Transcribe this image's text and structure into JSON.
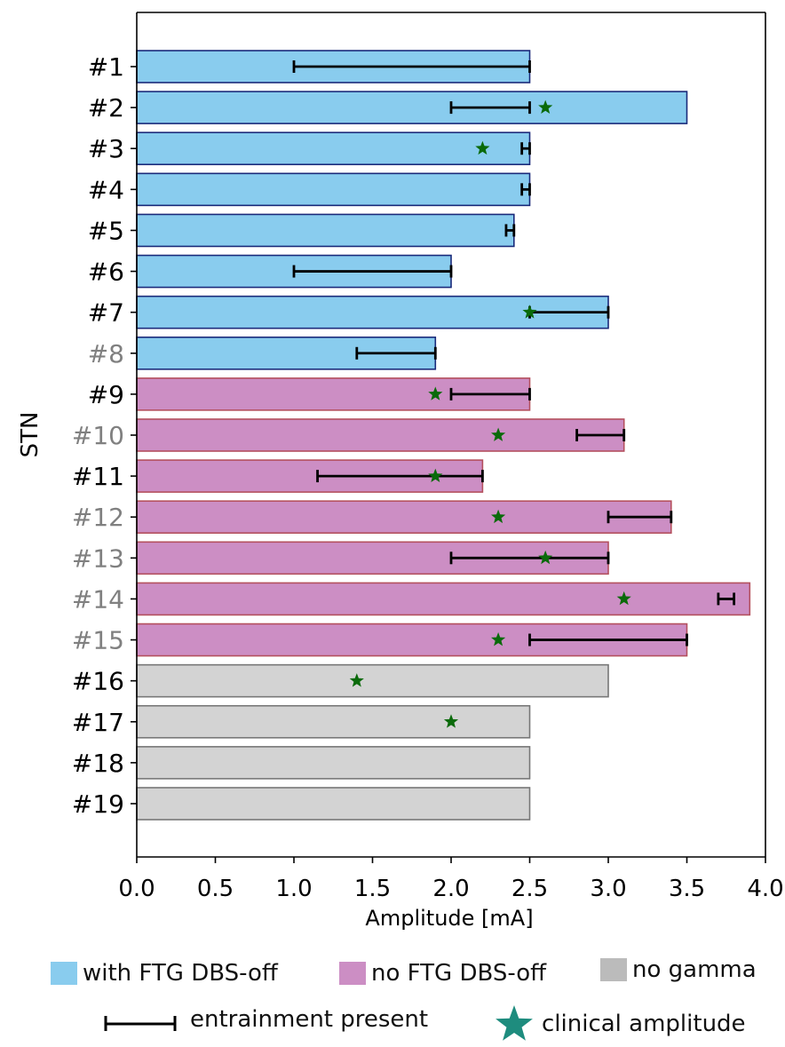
{
  "chart_data": {
    "type": "bar",
    "orientation": "horizontal",
    "ylabel": "STN",
    "xlabel": "Amplitude [mA]",
    "xlim": [
      0.0,
      4.0
    ],
    "xticks": [
      "0.0",
      "0.5",
      "1.0",
      "1.5",
      "2.0",
      "2.5",
      "3.0",
      "3.5",
      "4.0"
    ],
    "grid": false,
    "categories": [
      "#1",
      "#2",
      "#3",
      "#4",
      "#5",
      "#6",
      "#7",
      "#8",
      "#9",
      "#10",
      "#11",
      "#12",
      "#13",
      "#14",
      "#15",
      "#16",
      "#17",
      "#18",
      "#19"
    ],
    "label_colors": [
      "#000000",
      "#000000",
      "#000000",
      "#000000",
      "#000000",
      "#000000",
      "#000000",
      "#808080",
      "#000000",
      "#808080",
      "#000000",
      "#808080",
      "#808080",
      "#808080",
      "#808080",
      "#000000",
      "#000000",
      "#000000",
      "#000000"
    ],
    "values": [
      2.5,
      3.5,
      2.5,
      2.5,
      2.4,
      2.0,
      3.0,
      1.9,
      2.5,
      3.1,
      2.2,
      3.4,
      3.0,
      3.9,
      3.5,
      3.0,
      2.5,
      2.5,
      2.5
    ],
    "groups": [
      "with FTG DBS-off",
      "with FTG DBS-off",
      "with FTG DBS-off",
      "with FTG DBS-off",
      "with FTG DBS-off",
      "with FTG DBS-off",
      "with FTG DBS-off",
      "with FTG DBS-off",
      "no FTG DBS-off",
      "no FTG DBS-off",
      "no FTG DBS-off",
      "no FTG DBS-off",
      "no FTG DBS-off",
      "no FTG DBS-off",
      "no FTG DBS-off",
      "no gamma",
      "no gamma",
      "no gamma",
      "no gamma"
    ],
    "entrainment_ranges": [
      [
        1.0,
        2.5
      ],
      [
        2.0,
        2.5
      ],
      [
        2.45,
        2.5
      ],
      [
        2.45,
        2.5
      ],
      [
        2.35,
        2.4
      ],
      [
        1.0,
        2.0
      ],
      [
        2.5,
        3.0
      ],
      [
        1.4,
        1.9
      ],
      [
        2.0,
        2.5
      ],
      [
        2.8,
        3.1
      ],
      [
        1.15,
        2.2
      ],
      [
        3.0,
        3.4
      ],
      [
        2.0,
        3.0
      ],
      [
        3.7,
        3.8
      ],
      [
        2.5,
        3.5
      ],
      null,
      null,
      null,
      null
    ],
    "clinical_amplitude": [
      null,
      2.6,
      2.2,
      null,
      null,
      null,
      2.5,
      null,
      1.9,
      2.3,
      1.9,
      2.3,
      2.6,
      3.1,
      2.3,
      1.4,
      2.0,
      null,
      null
    ],
    "colors": {
      "with FTG DBS-off": {
        "fill": "#89CCEE",
        "edge": "#1A2A7A"
      },
      "no FTG DBS-off": {
        "fill": "#CC8EC4",
        "edge": "#B4505E"
      },
      "no gamma": {
        "fill": "#D3D3D3",
        "edge": "#777777"
      },
      "star": "#0A6A0A",
      "legend_star": "#1E8C7E",
      "errorbar": "#000000"
    },
    "legend": {
      "placement": "bottom",
      "items": [
        {
          "label": "with FTG DBS-off",
          "color": "#89CCEE",
          "kind": "patch"
        },
        {
          "label": "no FTG DBS-off",
          "color": "#CC8EC4",
          "kind": "patch"
        },
        {
          "label": "no gamma",
          "color": "#BBBBBB",
          "kind": "patch"
        },
        {
          "label": "entrainment present",
          "color": "#000000",
          "kind": "errorbar"
        },
        {
          "label": "clinical amplitude",
          "color": "#1E8C7E",
          "kind": "star"
        }
      ]
    }
  }
}
